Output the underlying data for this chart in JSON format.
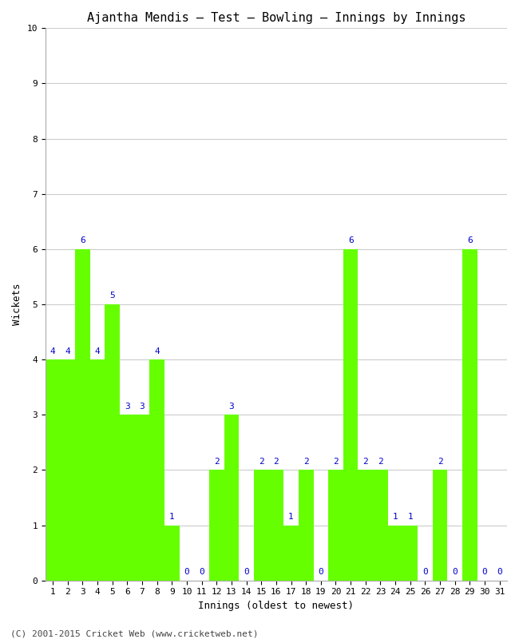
{
  "title": "Ajantha Mendis – Test – Bowling – Innings by Innings",
  "xlabel": "Innings (oldest to newest)",
  "ylabel": "Wickets",
  "innings": [
    1,
    2,
    3,
    4,
    5,
    6,
    7,
    8,
    9,
    10,
    11,
    12,
    13,
    14,
    15,
    16,
    17,
    18,
    19,
    20,
    21,
    22,
    23,
    24,
    25,
    26,
    27,
    28,
    29,
    30,
    31
  ],
  "wickets": [
    4,
    4,
    6,
    4,
    5,
    3,
    3,
    4,
    1,
    0,
    0,
    2,
    3,
    0,
    2,
    2,
    1,
    2,
    0,
    2,
    6,
    2,
    2,
    1,
    1,
    0,
    2,
    0,
    6,
    0,
    0
  ],
  "bar_color": "#66ff00",
  "bar_edge_color": "#66ff00",
  "label_color": "#0000cc",
  "background_color": "#ffffff",
  "grid_color": "#cccccc",
  "ylim": [
    0,
    10
  ],
  "yticks": [
    0,
    1,
    2,
    3,
    4,
    5,
    6,
    7,
    8,
    9,
    10
  ],
  "title_fontsize": 11,
  "axis_label_fontsize": 9,
  "tick_fontsize": 8,
  "bar_label_fontsize": 8,
  "copyright_text": "(C) 2001-2015 Cricket Web (www.cricketweb.net)",
  "copyright_fontsize": 8
}
